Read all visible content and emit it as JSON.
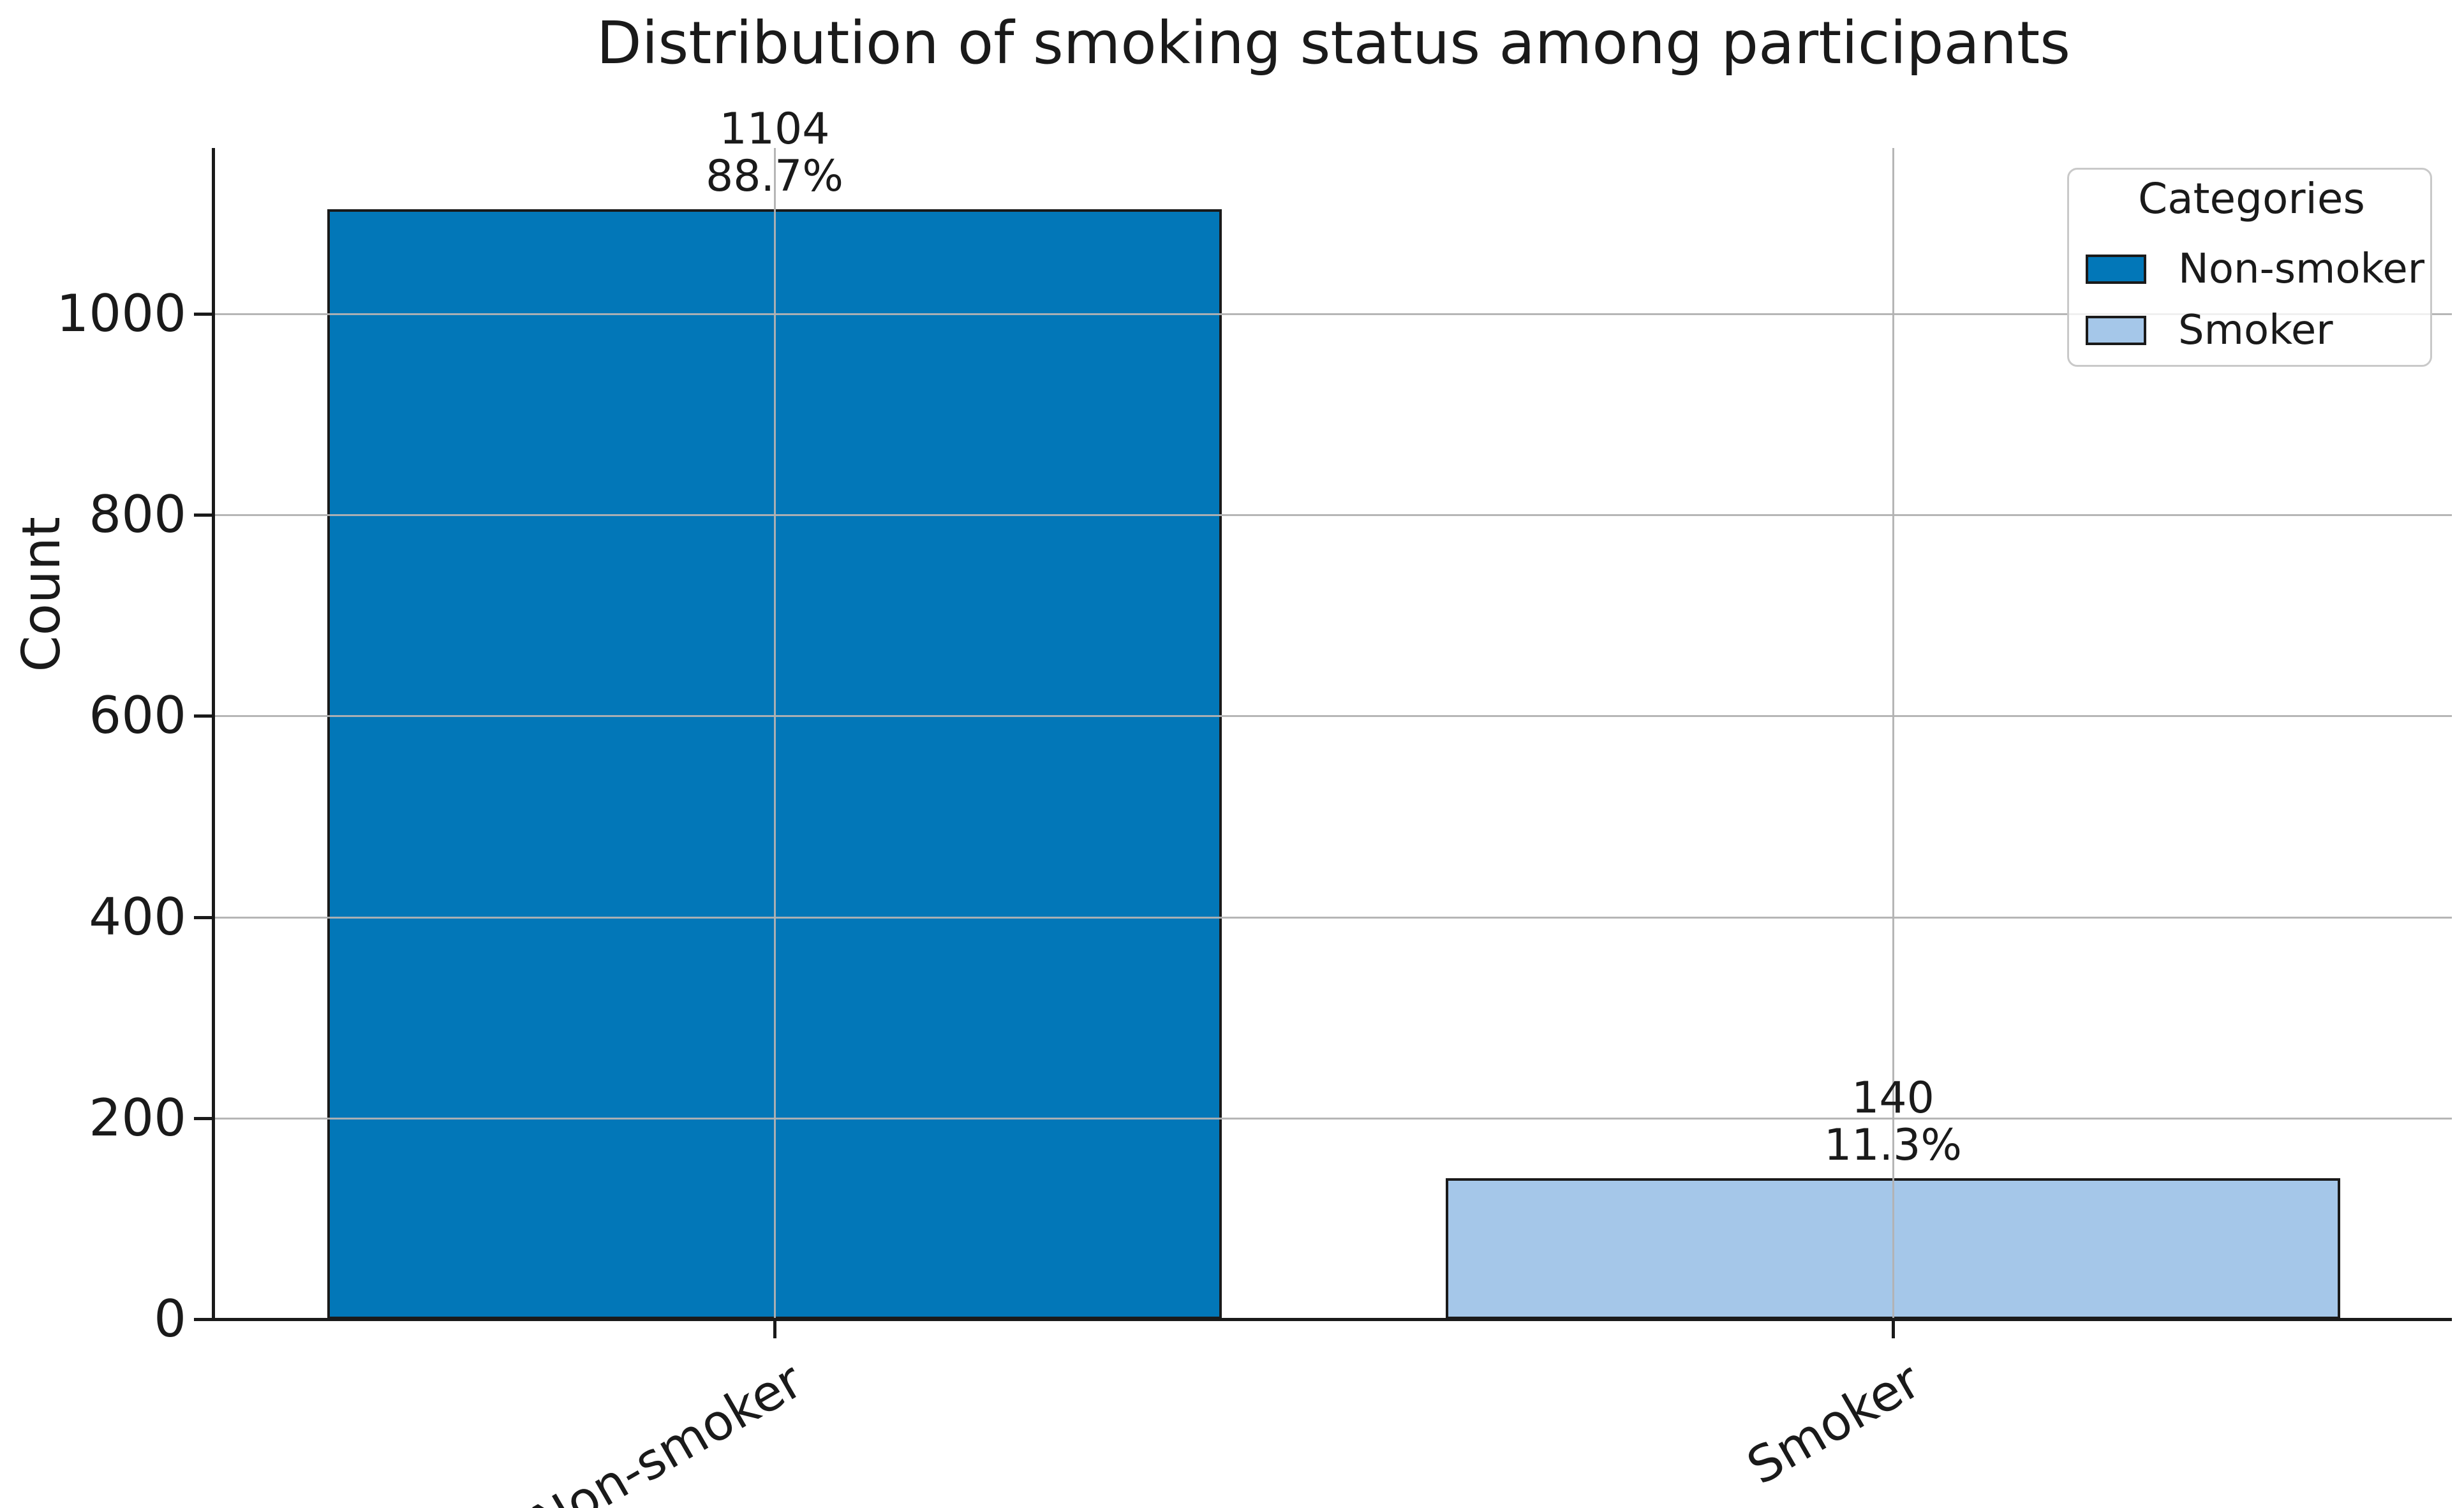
{
  "chart_data": {
    "type": "bar",
    "title": "Distribution of smoking status among participants",
    "xlabel": "",
    "ylabel": "Count",
    "categories": [
      "Non-smoker",
      "Smoker"
    ],
    "values": [
      1104,
      140
    ],
    "percent_labels": [
      "88.7%",
      "11.3%"
    ],
    "yticks": [
      0,
      200,
      400,
      600,
      800,
      1000
    ],
    "ylim": [
      0,
      1165
    ],
    "grid": true,
    "x_tick_rotation_deg": 30,
    "legend": {
      "title": "Categories",
      "position": "upper right",
      "entries": [
        {
          "label": "Non-smoker",
          "color": "#0277b8"
        },
        {
          "label": "Smoker",
          "color": "#a5c7e9"
        }
      ]
    },
    "colors": {
      "bar_fills": [
        "#0277b8",
        "#a5c7e9"
      ],
      "bar_edge": "#1a1a1a",
      "grid": "#b2b2b2",
      "axis": "#1a1a1a",
      "text": "#1a1a1a",
      "legend_border": "#c9c9c9"
    }
  }
}
